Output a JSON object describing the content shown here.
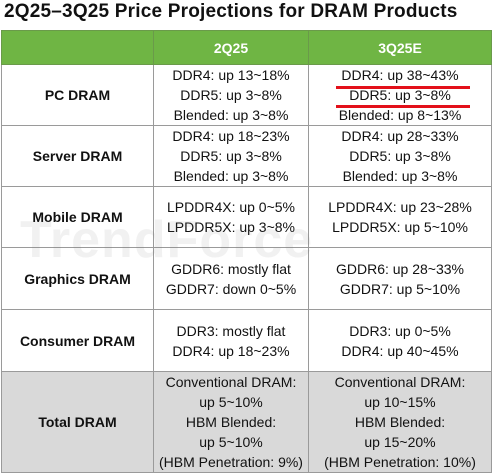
{
  "title": "2Q25–3Q25 Price Projections  for DRAM Products",
  "columns": [
    "",
    "2Q25",
    "3Q25E"
  ],
  "rows": [
    {
      "category": "PC DRAM",
      "q2": [
        "DDR4: up 13~18%",
        "DDR5: up 3~8%",
        "Blended: up 3~8%"
      ],
      "q3": [
        "DDR4: up 38~43%",
        "DDR5: up 3~8%",
        "Blended: up 8~13%"
      ]
    },
    {
      "category": "Server DRAM",
      "q2": [
        "DDR4: up 18~23%",
        "DDR5: up 3~8%",
        "Blended: up 3~8%"
      ],
      "q3": [
        "DDR4: up 28~33%",
        "DDR5: up 3~8%",
        "Blended: up 3~8%"
      ]
    },
    {
      "category": "Mobile DRAM",
      "q2": [
        "LPDDR4X: up 0~5%",
        "LPDDR5X: up 3~8%"
      ],
      "q3": [
        "LPDDR4X: up 23~28%",
        "LPDDR5X: up 5~10%"
      ]
    },
    {
      "category": "Graphics DRAM",
      "q2": [
        "GDDR6: mostly flat",
        "GDDR7: down 0~5%"
      ],
      "q3": [
        "GDDR6: up 28~33%",
        "GDDR7: up 5~10%"
      ]
    },
    {
      "category": "Consumer DRAM",
      "q2": [
        "DDR3: mostly flat",
        "DDR4: up 18~23%"
      ],
      "q3": [
        "DDR3: up 0~5%",
        "DDR4: up 40~45%"
      ]
    },
    {
      "category": "Total DRAM",
      "q2": [
        "Conventional DRAM:",
        "up 5~10%",
        "HBM Blended:",
        "up 5~10%",
        "(HBM Penetration: 9%)"
      ],
      "q3": [
        "Conventional DRAM:",
        "up 10~15%",
        "HBM Blended:",
        "up 15~20%",
        "(HBM Penetration: 10%)"
      ]
    }
  ],
  "watermark": "TrendForce",
  "colors": {
    "header_bg": "#6fb544",
    "total_bg": "#d9d9d9",
    "highlight_underline": "#e3101a"
  }
}
